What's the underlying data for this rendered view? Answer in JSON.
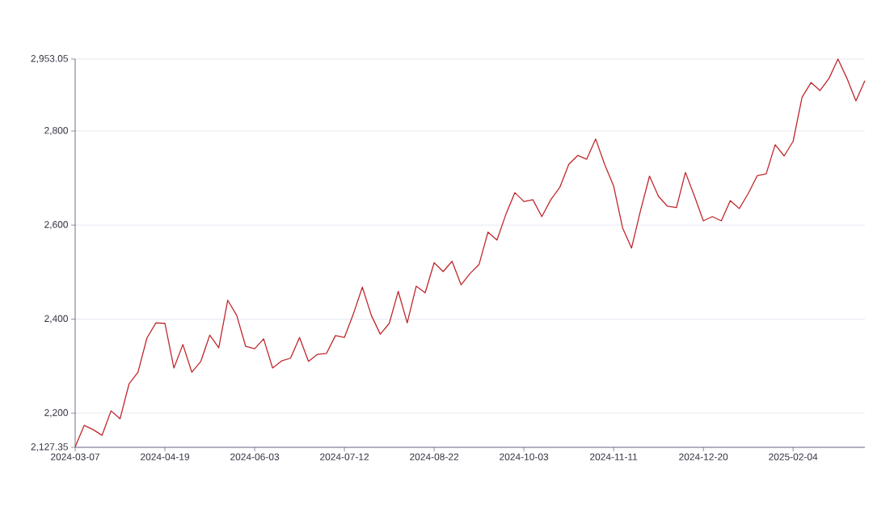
{
  "chart_data": {
    "type": "line",
    "color": "#c0272d",
    "grid": "y",
    "categories": [
      "2024-03-07",
      null,
      null,
      null,
      null,
      null,
      null,
      null,
      null,
      null,
      "2024-04-19",
      null,
      null,
      null,
      null,
      null,
      null,
      null,
      null,
      null,
      "2024-06-03",
      null,
      null,
      null,
      null,
      null,
      null,
      null,
      null,
      null,
      "2024-07-12",
      null,
      null,
      null,
      null,
      null,
      null,
      null,
      null,
      null,
      "2024-08-22",
      null,
      null,
      null,
      null,
      null,
      null,
      null,
      null,
      null,
      "2024-10-03",
      null,
      null,
      null,
      null,
      null,
      null,
      null,
      null,
      null,
      "2024-11-11",
      null,
      null,
      null,
      null,
      null,
      null,
      null,
      null,
      null,
      "2024-12-20",
      null,
      null,
      null,
      null,
      null,
      null,
      null,
      null,
      null,
      "2025-02-04",
      null,
      null,
      null,
      null,
      null,
      null,
      null,
      null
    ],
    "values": [
      2128,
      2174,
      2165,
      2153,
      2205,
      2188,
      2262,
      2287,
      2360,
      2392,
      2391,
      2296,
      2346,
      2287,
      2310,
      2366,
      2339,
      2440,
      2408,
      2342,
      2337,
      2358,
      2296,
      2311,
      2317,
      2361,
      2310,
      2325,
      2327,
      2365,
      2361,
      2411,
      2468,
      2408,
      2368,
      2391,
      2459,
      2392,
      2470,
      2456,
      2520,
      2501,
      2523,
      2473,
      2497,
      2516,
      2585,
      2568,
      2623,
      2669,
      2650,
      2654,
      2618,
      2654,
      2680,
      2729,
      2748,
      2740,
      2783,
      2729,
      2683,
      2594,
      2551,
      2631,
      2704,
      2661,
      2640,
      2637,
      2712,
      2662,
      2609,
      2618,
      2609,
      2652,
      2635,
      2667,
      2705,
      2709,
      2771,
      2747,
      2778,
      2872,
      2903,
      2886,
      2912,
      2953,
      2912,
      2864,
      2907
    ],
    "ylim": [
      2127.35,
      2953.05
    ],
    "yticks": [
      {
        "value": 2127.35,
        "label": "2,127.35"
      },
      {
        "value": 2200,
        "label": "2,200"
      },
      {
        "value": 2400,
        "label": "2,400"
      },
      {
        "value": 2600,
        "label": "2,600"
      },
      {
        "value": 2800,
        "label": "2,800"
      },
      {
        "value": 2953.05,
        "label": "2,953.05"
      }
    ]
  }
}
